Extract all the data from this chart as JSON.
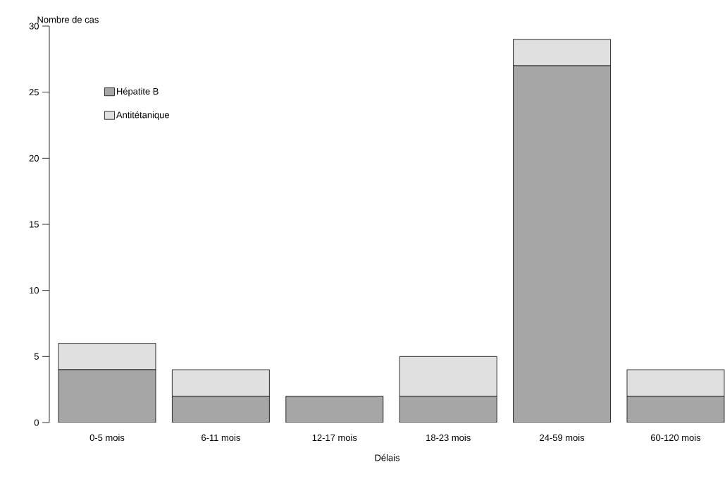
{
  "chart_data": {
    "type": "bar",
    "stacked": true,
    "ylabel": "Nombre de cas",
    "xlabel": "Délais",
    "categories": [
      "0-5 mois",
      "6-11 mois",
      "12-17 mois",
      "18-23 mois",
      "24-59 mois",
      "60-120 mois"
    ],
    "series": [
      {
        "name": "Hépatite B",
        "color": "#a6a6a6",
        "values": [
          4,
          2,
          2,
          2,
          27,
          2
        ]
      },
      {
        "name": "Antitétanique",
        "color": "#e0e0e0",
        "values": [
          2,
          2,
          0,
          3,
          2,
          2
        ]
      }
    ],
    "ylim": [
      0,
      30
    ],
    "yticks": [
      0,
      5,
      10,
      15,
      20,
      25,
      30
    ],
    "grid": false,
    "legend": "top left"
  }
}
